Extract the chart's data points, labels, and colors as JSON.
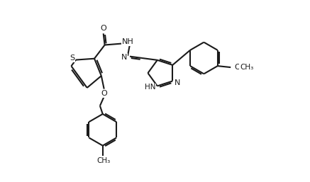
{
  "background_color": "#ffffff",
  "line_color": "#1a1a1a",
  "line_width": 1.5,
  "figsize": [
    4.37,
    2.57
  ],
  "dpi": 100,
  "font_size": 7.5,
  "xlim": [
    0,
    8.74
  ],
  "ylim": [
    0,
    5.14
  ]
}
